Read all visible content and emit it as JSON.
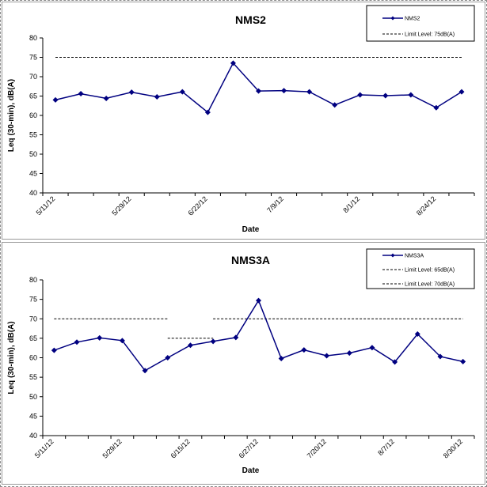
{
  "chart_data": [
    {
      "type": "line",
      "title": "NMS2",
      "xlabel": "Date",
      "ylabel": "Leq (30-min), dB(A)",
      "ylim": [
        40,
        80
      ],
      "yticks": [
        "40",
        "45",
        "50",
        "55",
        "60",
        "65",
        "70",
        "75",
        "80"
      ],
      "x_tick_labels": [
        {
          "index": 0,
          "label": "5/11/12"
        },
        {
          "index": 3,
          "label": "5/29/12"
        },
        {
          "index": 6,
          "label": "6/22/12"
        },
        {
          "index": 9,
          "label": "7/9/12"
        },
        {
          "index": 12,
          "label": "8/1/12"
        },
        {
          "index": 15,
          "label": "8/24/12"
        }
      ],
      "series": [
        {
          "name": "NMS2",
          "color": "#000080",
          "marker": "diamond",
          "values": [
            64.0,
            65.6,
            64.4,
            66.0,
            64.8,
            66.1,
            60.8,
            73.5,
            66.3,
            66.4,
            66.1,
            62.7,
            65.3,
            65.1,
            65.3,
            62.0,
            66.1
          ]
        }
      ],
      "limits": [
        {
          "name": "Limit Level:  75dB(A)",
          "color": "#000000",
          "style": "dashed",
          "segments": [
            {
              "from_index": 0,
              "to_index": 16,
              "y": 75
            }
          ]
        }
      ],
      "legend_position": "top-right",
      "grid": false
    },
    {
      "type": "line",
      "title": "NMS3A",
      "xlabel": "Date",
      "ylabel": "Leq (30-min), dB(A)",
      "ylim": [
        40,
        80
      ],
      "yticks": [
        "40",
        "45",
        "50",
        "55",
        "60",
        "65",
        "70",
        "75",
        "80"
      ],
      "x_tick_labels": [
        {
          "index": 0,
          "label": "5/11/12"
        },
        {
          "index": 3,
          "label": "5/29/12"
        },
        {
          "index": 6,
          "label": "6/15/12"
        },
        {
          "index": 9,
          "label": "6/27/12"
        },
        {
          "index": 12,
          "label": "7/20/12"
        },
        {
          "index": 15,
          "label": "8/7/12"
        },
        {
          "index": 18,
          "label": "8/30/12"
        }
      ],
      "series": [
        {
          "name": "NMS3A",
          "color": "#000080",
          "marker": "diamond",
          "values": [
            61.9,
            64.0,
            65.1,
            64.4,
            56.7,
            60.0,
            63.2,
            64.2,
            65.2,
            74.7,
            59.8,
            62.0,
            60.5,
            61.2,
            62.6,
            58.9,
            66.1,
            60.3,
            59.0
          ]
        }
      ],
      "limits": [
        {
          "name": "Limit Level:  65dB(A)",
          "color": "#000000",
          "style": "dashed",
          "segments": [
            {
              "from_index": 5,
              "to_index": 7,
              "y": 65
            }
          ]
        },
        {
          "name": "Limit Level:  70dB(A)",
          "color": "#000000",
          "style": "dashed",
          "segments": [
            {
              "from_index": 0,
              "to_index": 5,
              "y": 70
            },
            {
              "from_index": 7,
              "to_index": 18,
              "y": 70
            }
          ]
        }
      ],
      "legend_position": "top-right",
      "grid": false
    }
  ]
}
